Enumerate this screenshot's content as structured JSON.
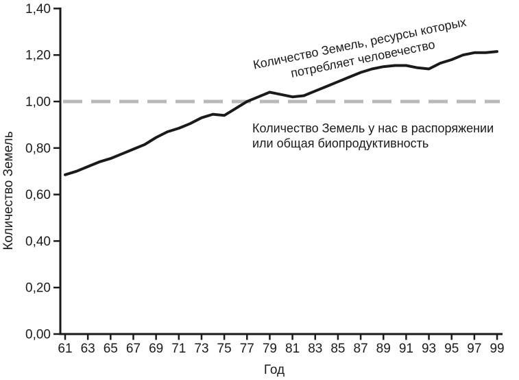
{
  "chart_data": {
    "type": "line",
    "title": "",
    "xlabel": "Год",
    "ylabel": "Количество Земель",
    "years": [
      61,
      62,
      63,
      64,
      65,
      66,
      67,
      68,
      69,
      70,
      71,
      72,
      73,
      74,
      75,
      76,
      77,
      78,
      79,
      80,
      81,
      82,
      83,
      84,
      85,
      86,
      87,
      88,
      89,
      90,
      91,
      92,
      93,
      94,
      95,
      96,
      97,
      98,
      99
    ],
    "x_tick_labels": [
      "61",
      "63",
      "65",
      "67",
      "69",
      "71",
      "73",
      "75",
      "77",
      "79",
      "81",
      "83",
      "85",
      "87",
      "89",
      "91",
      "93",
      "95",
      "97",
      "99"
    ],
    "series": [
      {
        "name": "Количество Земель, ресурсы которых потребляет человечество",
        "style": "solid",
        "color": "#1a1a1a",
        "values": [
          0.685,
          0.7,
          0.72,
          0.74,
          0.755,
          0.775,
          0.795,
          0.815,
          0.845,
          0.87,
          0.885,
          0.905,
          0.93,
          0.945,
          0.94,
          0.97,
          1.0,
          1.02,
          1.04,
          1.03,
          1.02,
          1.025,
          1.045,
          1.065,
          1.085,
          1.105,
          1.125,
          1.14,
          1.15,
          1.155,
          1.155,
          1.145,
          1.14,
          1.165,
          1.18,
          1.2,
          1.21,
          1.21,
          1.215
        ]
      }
    ],
    "reference_line": {
      "name": "Количество Земель у нас в распоряжении или общая биопродуктивность",
      "value": 1.0,
      "style": "dashed",
      "color": "#b9b9b9"
    },
    "ylim": [
      0,
      1.4
    ],
    "y_ticks": {
      "values": [
        0,
        0.2,
        0.4,
        0.6,
        0.8,
        1.0,
        1.2,
        1.4
      ],
      "labels": [
        "0,00",
        "0,20",
        "0,40",
        "0,60",
        "0,80",
        "1,00",
        "1,20",
        "1,40"
      ]
    },
    "grid": false,
    "legend": "none"
  },
  "annotations": {
    "consumption": {
      "line1": "Количество Земель, ресурсы которых",
      "line2": "потребляет человечество"
    },
    "capacity": {
      "line1": "Количество Земель у нас в распоряжении",
      "line2": "или общая биопродуктивность"
    }
  },
  "colors": {
    "ink": "#1a1a1a",
    "dashed_line": "#b9b9b9",
    "background": "#ffffff"
  }
}
